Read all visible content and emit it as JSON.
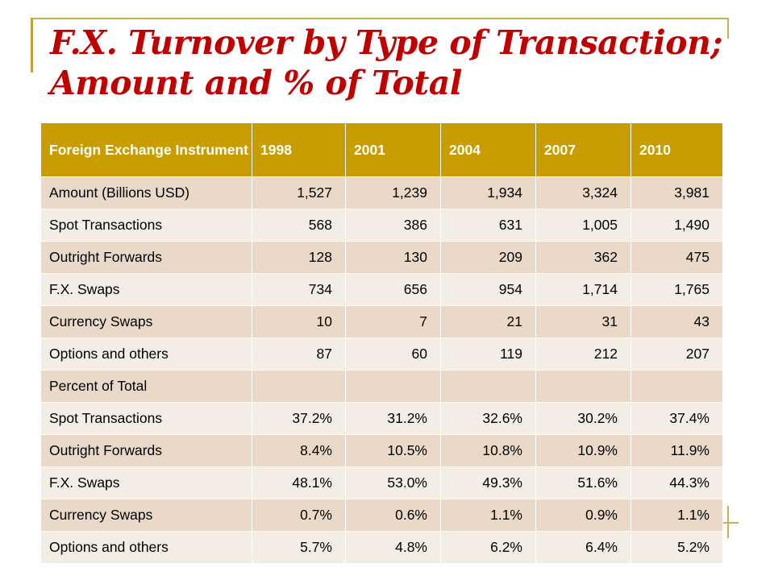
{
  "title": "F.X. Turnover by Type of Transaction; Amount and % of Total",
  "table": {
    "header": [
      "Foreign Exchange Instrument",
      "1998",
      "2001",
      "2004",
      "2007",
      "2010"
    ],
    "rows": [
      {
        "label": "Amount (Billions USD)",
        "values": [
          "1,527",
          "1,239",
          "1,934",
          "3,324",
          "3,981"
        ]
      },
      {
        "label": "Spot Transactions",
        "values": [
          "568",
          "386",
          "631",
          "1,005",
          "1,490"
        ]
      },
      {
        "label": "Outright Forwards",
        "values": [
          "128",
          "130",
          "209",
          "362",
          "475"
        ]
      },
      {
        "label": "F.X. Swaps",
        "values": [
          "734",
          "656",
          "954",
          "1,714",
          "1,765"
        ]
      },
      {
        "label": "Currency Swaps",
        "values": [
          "10",
          "7",
          "21",
          "31",
          "43"
        ]
      },
      {
        "label": "Options and others",
        "values": [
          "87",
          "60",
          "119",
          "212",
          "207"
        ]
      },
      {
        "label": "Percent of Total",
        "values": [
          "",
          "",
          "",
          "",
          ""
        ]
      },
      {
        "label": "Spot Transactions",
        "values": [
          "37.2%",
          "31.2%",
          "32.6%",
          "30.2%",
          "37.4%"
        ]
      },
      {
        "label": "Outright Forwards",
        "values": [
          "8.4%",
          "10.5%",
          "10.8%",
          "10.9%",
          "11.9%"
        ]
      },
      {
        "label": "F.X. Swaps",
        "values": [
          "48.1%",
          "53.0%",
          "49.3%",
          "51.6%",
          "44.3%"
        ]
      },
      {
        "label": "Currency Swaps",
        "values": [
          "0.7%",
          "0.6%",
          "1.1%",
          "0.9%",
          "1.1%"
        ]
      },
      {
        "label": "Options and others",
        "values": [
          "5.7%",
          "4.8%",
          "6.2%",
          "6.4%",
          "5.2%"
        ]
      }
    ]
  },
  "colors": {
    "title": "#c00000",
    "header_bg": "#c99d00",
    "row_odd": "#ead9c9",
    "row_even": "#f4ede6",
    "accent_lines": "#c9ae55"
  }
}
